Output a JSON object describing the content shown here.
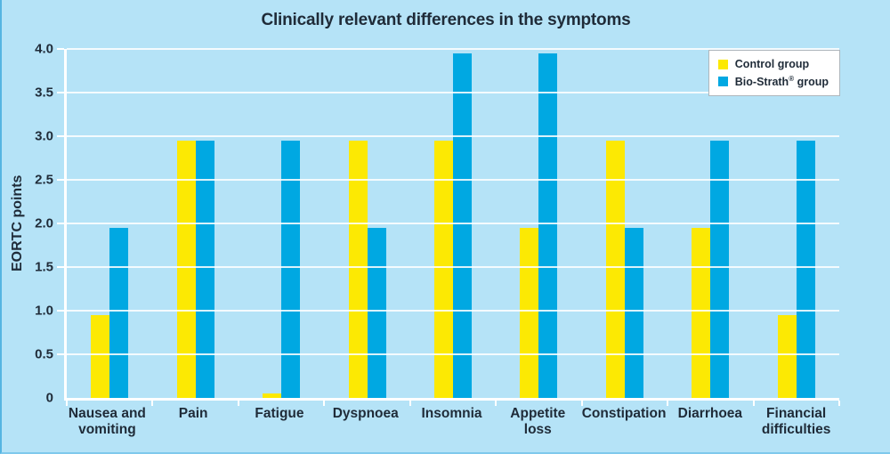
{
  "figure": {
    "background_color": "#B5E3F7",
    "text_color": "#1F2B38",
    "gridline_color": "rgba(255,255,255,0.85)",
    "axis_color": "#FFFFFF",
    "legend_border_color": "#AEB6BC",
    "legend_background": "#FFFFFF"
  },
  "chart_data": {
    "type": "bar",
    "title": "Clinically relevant differences in the symptoms",
    "xlabel": "",
    "ylabel": "EORTC points",
    "ylim": [
      0,
      4
    ],
    "ytick_values": [
      0,
      0.5,
      1,
      1.5,
      2,
      2.5,
      3,
      3.5,
      4
    ],
    "ytick_labels": [
      "0",
      "0.5",
      "1.0",
      "1.5",
      "2.0",
      "2.5",
      "3.0",
      "3.5",
      "4.0"
    ],
    "grid": true,
    "legend_position": "top-right",
    "categories": [
      "Nausea and\nvomiting",
      "Pain",
      "Fatigue",
      "Dyspnoea",
      "Insomnia",
      "Appetite\nloss",
      "Constipation",
      "Diarrhoea",
      "Financial\ndifficulties"
    ],
    "series": [
      {
        "name": "Control group",
        "color": "#FCE903",
        "values": [
          0.95,
          2.95,
          0.05,
          2.95,
          2.95,
          1.95,
          2.95,
          1.95,
          0.95
        ]
      },
      {
        "name": "Bio-Strath® group",
        "color": "#00A8E2",
        "legend_parts": {
          "pre": "Bio-Strath",
          "sup": "®",
          "post": " group"
        },
        "values": [
          1.95,
          2.95,
          2.95,
          1.95,
          3.95,
          3.95,
          1.95,
          2.95,
          2.95
        ]
      }
    ]
  }
}
